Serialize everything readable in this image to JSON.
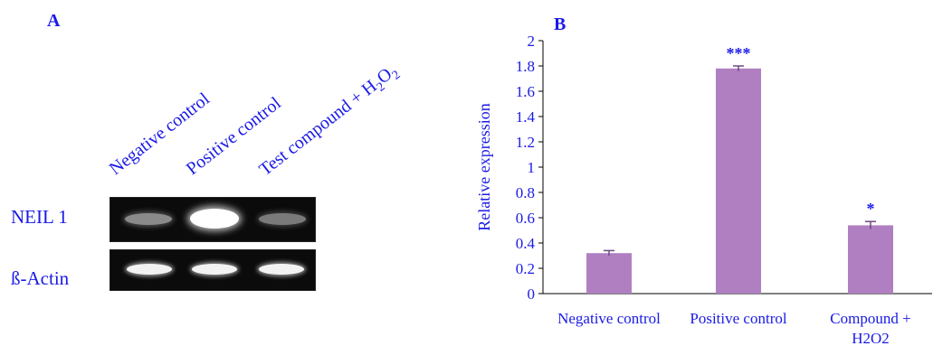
{
  "panel_a": {
    "letter": "A",
    "lanes": [
      {
        "label": "Negative control"
      },
      {
        "label": "Positive control"
      },
      {
        "label_main": "Test compound + H",
        "label_sub": "2",
        "label_o": "O",
        "label_sub2": "2"
      }
    ],
    "rows": [
      {
        "label": "NEIL 1",
        "band_intensity": [
          0.45,
          1.0,
          0.4
        ]
      },
      {
        "label": "ß-Actin",
        "band_intensity": [
          0.95,
          0.95,
          0.95
        ]
      }
    ]
  },
  "panel_b": {
    "letter": "B",
    "chart_data": {
      "type": "bar",
      "categories": [
        "Negative control",
        "Positive control",
        "Compound + H2O2"
      ],
      "category_lines": [
        [
          "Negative control"
        ],
        [
          "Positive control"
        ],
        [
          "Compound +",
          "H2O2"
        ]
      ],
      "values": [
        0.32,
        1.78,
        0.54
      ],
      "errors": [
        0.02,
        0.02,
        0.03
      ],
      "significance": [
        "",
        "***",
        "*"
      ],
      "ylabel": "Relative expression",
      "xlabel": "",
      "ylim": [
        0,
        2
      ],
      "yticks": [
        0,
        0.2,
        0.4,
        0.6,
        0.8,
        1,
        1.2,
        1.4,
        1.6,
        1.8,
        2
      ],
      "bar_color": "#b07fc2",
      "text_color": "#1a1ae6",
      "grid": false
    }
  }
}
